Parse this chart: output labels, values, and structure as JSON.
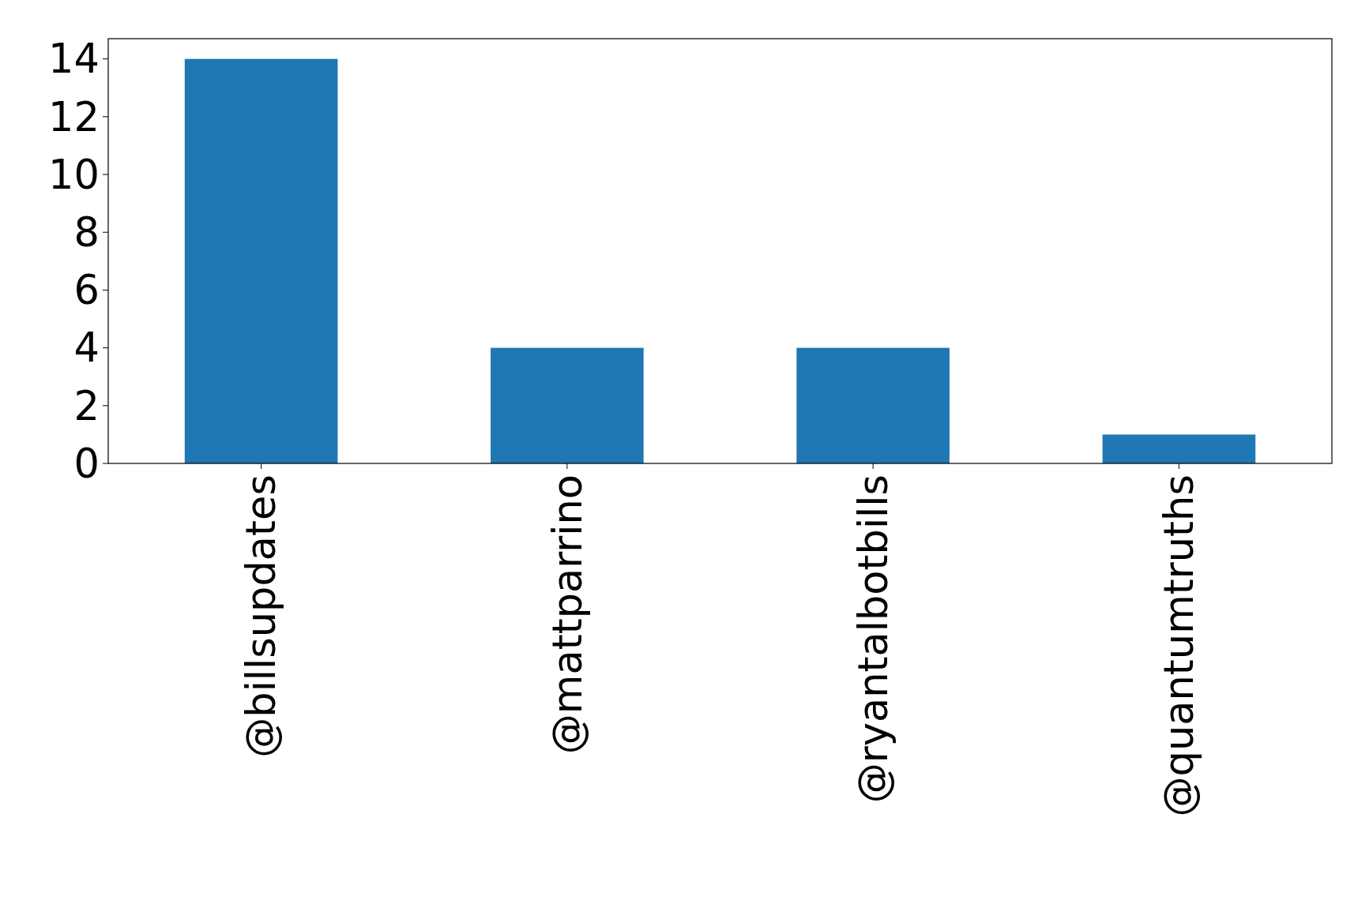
{
  "chart_data": {
    "type": "bar",
    "categories": [
      "@billsupdates",
      "@mattparrino",
      "@ryantalbotbills",
      "@quantumtruths"
    ],
    "values": [
      14,
      4,
      4,
      1
    ],
    "color": "#1f77b4",
    "ylim": [
      0,
      14.7
    ],
    "yticks": [
      0,
      2,
      4,
      6,
      8,
      10,
      12,
      14
    ],
    "grid": false
  }
}
